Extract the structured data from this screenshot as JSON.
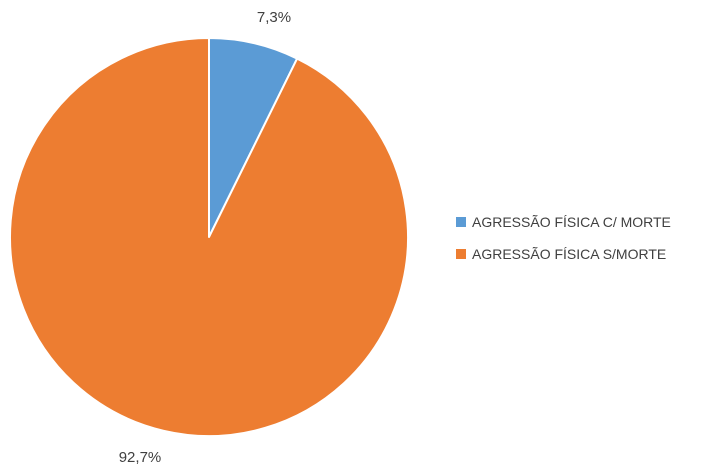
{
  "chart_data": {
    "type": "pie",
    "categories": [
      "AGRESSÃO FÍSICA C/ MORTE",
      "AGRESSÃO FÍSICA S/MORTE"
    ],
    "values": [
      7.3,
      92.7
    ],
    "data_labels": [
      "7,3%",
      "92,7%"
    ],
    "colors": [
      "#5B9BD5",
      "#ED7D31"
    ],
    "legend_position": "right",
    "start_angle": "12 o'clock",
    "direction": "clockwise",
    "unit": "%"
  }
}
